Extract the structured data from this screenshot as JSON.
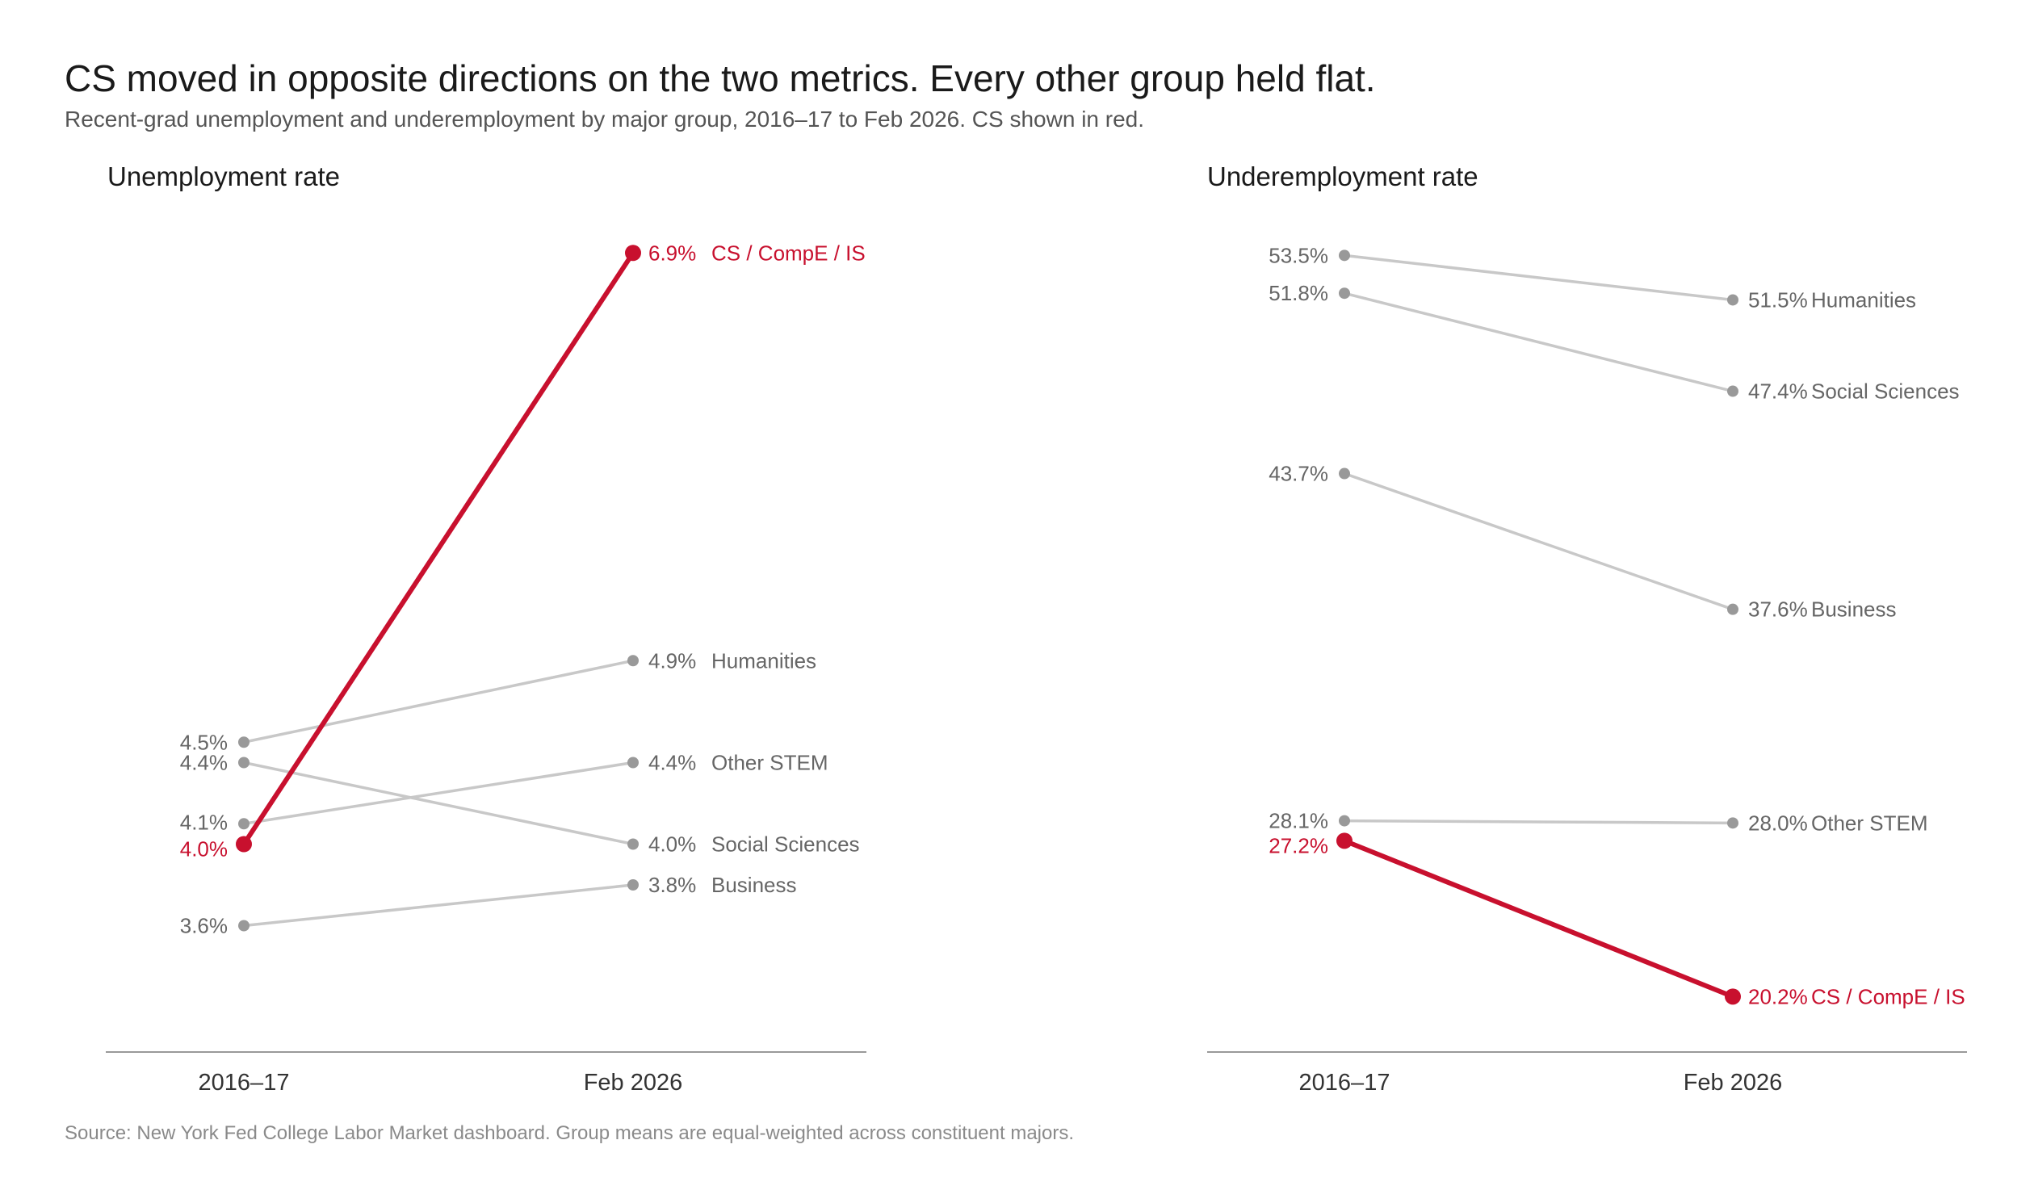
{
  "title": "CS moved in opposite directions on the two metrics. Every other group held flat.",
  "subtitle": "Recent-grad unemployment and underemployment by major group, 2016–17 to Feb 2026. CS shown in red.",
  "source": "Source: New York Fed College Labor Market dashboard. Group means are equal-weighted across constituent majors.",
  "colors": {
    "highlight": "#c8102e",
    "muted_line": "#c8c8c8",
    "muted_dot": "#999999",
    "muted_text": "#666666",
    "axis": "#999999"
  },
  "chart_data": [
    {
      "type": "line",
      "title": "Unemployment rate",
      "categories": [
        "2016–17",
        "Feb 2026"
      ],
      "series": [
        {
          "name": "CS / CompE / IS",
          "values": [
            4.0,
            6.9
          ],
          "start_label": "4.0%",
          "end_label": "6.9%",
          "highlight": true
        },
        {
          "name": "Humanities",
          "values": [
            4.5,
            4.9
          ],
          "start_label": "4.5%",
          "end_label": "4.9%",
          "highlight": false
        },
        {
          "name": "Other STEM",
          "values": [
            4.1,
            4.4
          ],
          "start_label": "4.1%",
          "end_label": "4.4%",
          "highlight": false
        },
        {
          "name": "Social Sciences",
          "values": [
            4.4,
            4.0
          ],
          "start_label": "4.4%",
          "end_label": "4.0%",
          "highlight": false
        },
        {
          "name": "Business",
          "values": [
            3.6,
            3.8
          ],
          "start_label": "3.6%",
          "end_label": "3.8%",
          "highlight": false
        }
      ]
    },
    {
      "type": "line",
      "title": "Underemployment rate",
      "categories": [
        "2016–17",
        "Feb 2026"
      ],
      "series": [
        {
          "name": "CS / CompE / IS",
          "values": [
            27.2,
            20.2
          ],
          "start_label": "27.2%",
          "end_label": "20.2%",
          "highlight": true
        },
        {
          "name": "Humanities",
          "values": [
            53.5,
            51.5
          ],
          "start_label": "53.5%",
          "end_label": "51.5%",
          "highlight": false
        },
        {
          "name": "Social Sciences",
          "values": [
            51.8,
            47.4
          ],
          "start_label": "51.8%",
          "end_label": "47.4%",
          "highlight": false
        },
        {
          "name": "Business",
          "values": [
            43.7,
            37.6
          ],
          "start_label": "43.7%",
          "end_label": "37.6%",
          "highlight": false
        },
        {
          "name": "Other STEM",
          "values": [
            28.1,
            28.0
          ],
          "start_label": "28.1%",
          "end_label": "28.0%",
          "highlight": false
        }
      ]
    }
  ]
}
